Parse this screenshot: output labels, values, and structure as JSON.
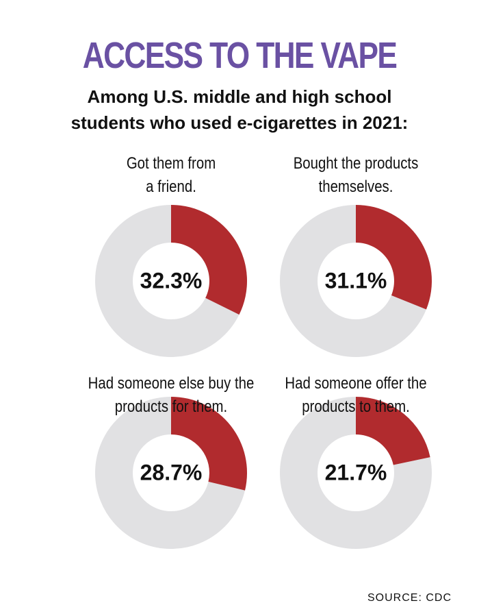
{
  "header": {
    "title": "ACCESS TO THE VAPE",
    "subtitle": "Among U.S. middle and high school\nstudents who used e-cigarettes in 2021:"
  },
  "chart_data": [
    {
      "type": "donut",
      "title": "Got them from\na friend.",
      "values": [
        32.3
      ],
      "value_labels": [
        "32.3%"
      ],
      "color": "#b12b2e",
      "track_color": "#e1e1e3"
    },
    {
      "type": "donut",
      "title": "Bought the products\nthemselves.",
      "values": [
        31.1
      ],
      "value_labels": [
        "31.1%"
      ],
      "color": "#b12b2e",
      "track_color": "#e1e1e3"
    },
    {
      "type": "donut",
      "title": "Had someone else buy the\nproducts for them.",
      "values": [
        28.7
      ],
      "value_labels": [
        "28.7%"
      ],
      "color": "#b12b2e",
      "track_color": "#e1e1e3"
    },
    {
      "type": "donut",
      "title": "Had someone offer the\nproducts to them.",
      "values": [
        21.7
      ],
      "value_labels": [
        "21.7%"
      ],
      "color": "#b12b2e",
      "track_color": "#e1e1e3"
    }
  ],
  "source": "SOURCE: CDC"
}
